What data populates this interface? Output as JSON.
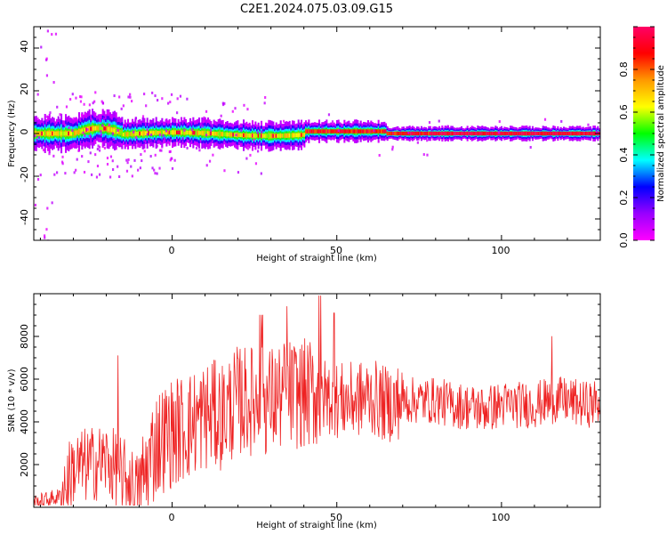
{
  "title": "C2E1.2024.075.03.09.G15",
  "chart_data": [
    {
      "type": "heatmap",
      "xlabel": "Height of straight line (km)",
      "ylabel": "Frequency (Hz)",
      "xlim": [
        -42,
        130
      ],
      "ylim": [
        -50,
        50
      ],
      "x_ticks": [
        "0",
        "50",
        "100"
      ],
      "y_ticks": [
        "-40",
        "-20",
        "0",
        "20",
        "40"
      ],
      "colorbar": {
        "label": "Normalized spectral amplitude",
        "range": [
          0,
          1
        ],
        "ticks": [
          "0.0",
          "0.2",
          "0.4",
          "0.6",
          "0.8"
        ],
        "colors": [
          "#ff00ff",
          "#9900ff",
          "#0000ff",
          "#00ffff",
          "#00ff00",
          "#ffff00",
          "#ff9900",
          "#ff0000",
          "#ff0066"
        ]
      }
    },
    {
      "type": "line",
      "xlabel": "Height of straight line (km)",
      "ylabel": "SNR (10 * v/v)",
      "xlim": [
        -42,
        130
      ],
      "ylim": [
        0,
        10000
      ],
      "x_ticks": [
        "0",
        "50",
        "100"
      ],
      "y_ticks": [
        "2000",
        "4000",
        "6000",
        "8000"
      ],
      "color": "#ee2222",
      "envelope": {
        "x": [
          -42,
          -34,
          -30,
          -25,
          -20,
          -15,
          -10,
          -5,
          0,
          5,
          10,
          15,
          20,
          25,
          30,
          35,
          40,
          45,
          50,
          55,
          60,
          65,
          70,
          75,
          80,
          85,
          90,
          95,
          100,
          105,
          110,
          115,
          120,
          125,
          130
        ],
        "y": [
          200,
          500,
          1800,
          2000,
          2200,
          1500,
          700,
          3000,
          3500,
          3800,
          4300,
          4300,
          5000,
          5000,
          5000,
          5300,
          5300,
          5300,
          5000,
          5000,
          5200,
          4800,
          5000,
          5000,
          5000,
          4800,
          4700,
          4600,
          4800,
          4800,
          4800,
          5000,
          5000,
          4800,
          4900
        ]
      }
    }
  ]
}
